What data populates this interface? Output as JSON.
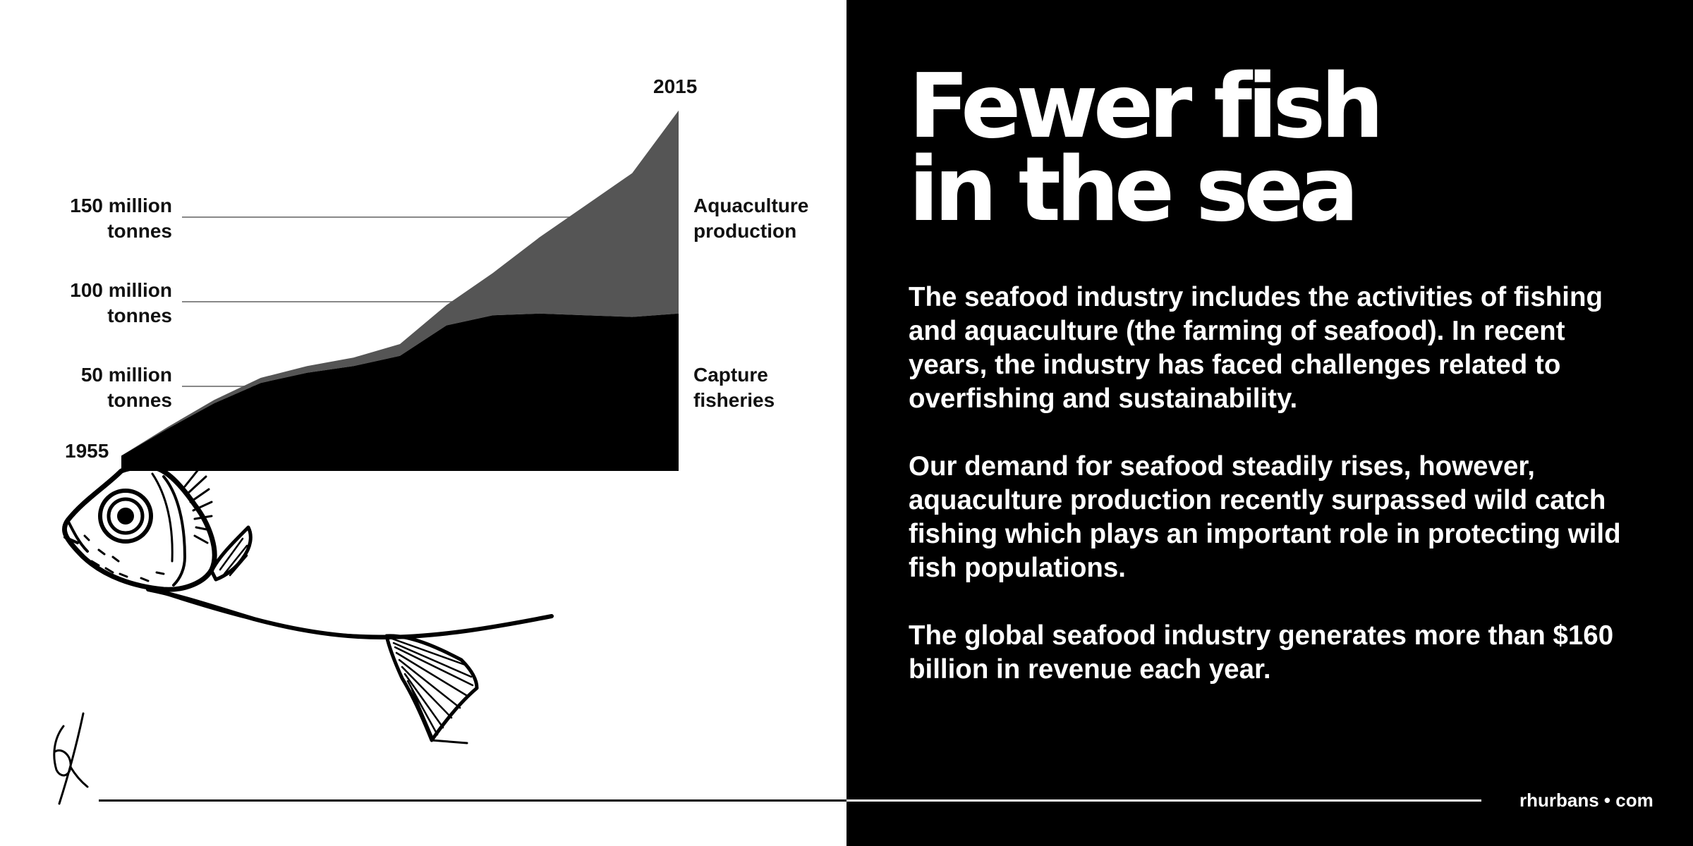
{
  "title": "Fewer fish\nin the sea",
  "paragraphs": [
    "The seafood industry includes the activities of fishing and aquaculture (the farming of seafood). In recent years, the industry has faced challenges related to overfishing and sustainability.",
    "Our demand for seafood steadily rises, however, aquaculture production recently surpassed wild catch fishing which plays an important role in protecting wild fish populations.",
    "The global seafood industry generates more than $160 billion in revenue each year."
  ],
  "brand": "rhurbans • com",
  "colors": {
    "capture": "#000000",
    "aquaculture": "#555555",
    "background_left": "#ffffff",
    "background_right": "#000000",
    "gridline": "#888888"
  },
  "icons": [
    "fish-illustration",
    "signature-mark"
  ],
  "chart_data": {
    "type": "area",
    "stacked": true,
    "x": [
      1955,
      1960,
      1965,
      1970,
      1975,
      1980,
      1985,
      1990,
      1995,
      2000,
      2005,
      2010,
      2015
    ],
    "xlim": [
      1955,
      2015
    ],
    "ylim": [
      0,
      210
    ],
    "y_ticks": [
      50,
      100,
      150
    ],
    "y_tick_labels": [
      "50 million\ntonnes",
      "100 million\ntonnes",
      "150 million\ntonnes"
    ],
    "x_labels": {
      "start": "1955",
      "end": "2015"
    },
    "legend_placement": "right",
    "series": [
      {
        "name": "Capture\nfisheries",
        "values": [
          9,
          25,
          40,
          52,
          58,
          62,
          68,
          86,
          92,
          93,
          92,
          91,
          93
        ]
      },
      {
        "name": "Aquaculture\nproduction",
        "values": [
          0,
          1,
          2,
          3,
          4,
          5,
          7,
          12,
          25,
          45,
          65,
          85,
          120
        ]
      }
    ]
  }
}
